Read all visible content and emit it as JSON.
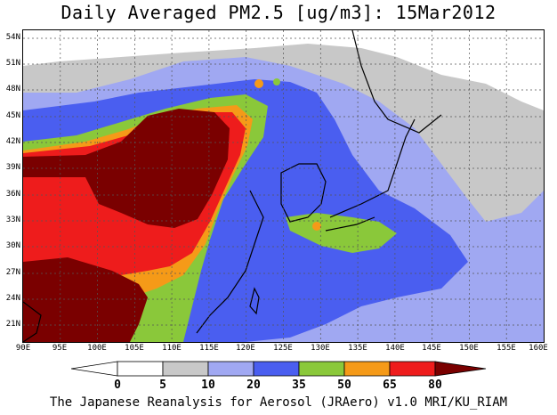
{
  "title": "Daily Averaged PM2.5 [ug/m3]: 15Mar2012",
  "footer": "The Japanese Reanalysis for Aerosol (JRAero) v1.0 MRI/KU_RIAM",
  "lat_labels": [
    "54N",
    "51N",
    "48N",
    "45N",
    "42N",
    "39N",
    "36N",
    "33N",
    "30N",
    "27N",
    "24N",
    "21N"
  ],
  "lon_labels": [
    "90E",
    "95E",
    "100E",
    "105E",
    "110E",
    "115E",
    "120E",
    "125E",
    "130E",
    "135E",
    "140E",
    "145E",
    "150E",
    "155E",
    "160E"
  ],
  "colorbar": {
    "labels": [
      "0",
      "5",
      "10",
      "20",
      "35",
      "50",
      "65",
      "80"
    ],
    "colors": [
      "#ffffff",
      "#c8c8c8",
      "#a0a8f2",
      "#4a5ef0",
      "#8ac83a",
      "#f59a18",
      "#ee1c1c",
      "#7a0000"
    ]
  }
}
